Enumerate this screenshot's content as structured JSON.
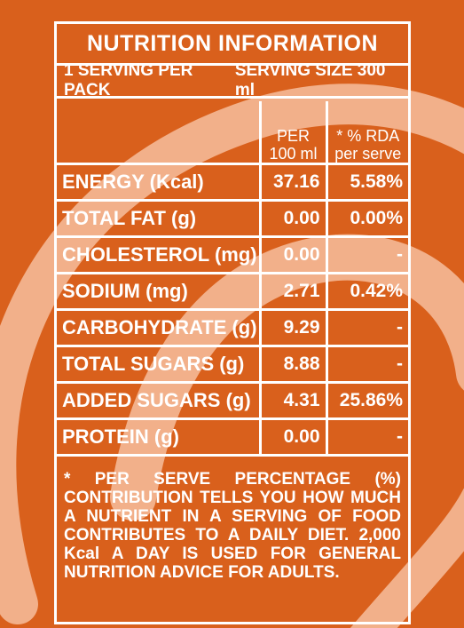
{
  "colors": {
    "background": "#d9601c",
    "swirl": "#f2b08a",
    "text": "#ffffff"
  },
  "title": "NUTRITION INFORMATION",
  "serving": {
    "per_pack": "1 SERVING PER PACK",
    "size": "SERVING SIZE 300 ml"
  },
  "columns": {
    "per_100_line1": "PER",
    "per_100_line2": "100 ml",
    "rda_line1": "* % RDA",
    "rda_line2": "per serve"
  },
  "rows": [
    {
      "name": "ENERGY (Kcal)",
      "per_100": "37.16",
      "rda": "5.58%"
    },
    {
      "name": "TOTAL FAT (g)",
      "per_100": "0.00",
      "rda": "0.00%"
    },
    {
      "name": "CHOLESTEROL (mg)",
      "per_100": "0.00",
      "rda": "-"
    },
    {
      "name": "SODIUM (mg)",
      "per_100": "2.71",
      "rda": "0.42%"
    },
    {
      "name": "CARBOHYDRATE (g)",
      "per_100": "9.29",
      "rda": "-"
    },
    {
      "name": "TOTAL SUGARS (g)",
      "per_100": "8.88",
      "rda": "-"
    },
    {
      "name": "ADDED SUGARS (g)",
      "per_100": "4.31",
      "rda": "25.86%"
    },
    {
      "name": "PROTEIN (g)",
      "per_100": "0.00",
      "rda": "-"
    }
  ],
  "note": "* PER SERVE PERCENTAGE (%) CONTRIBUTION TELLS YOU HOW MUCH A NUTRIENT IN A SERVING OF FOOD CONTRIBUTES TO A DAILY DIET. 2,000 Kcal A DAY IS USED FOR GENERAL NUTRITION ADVICE FOR ADULTS."
}
